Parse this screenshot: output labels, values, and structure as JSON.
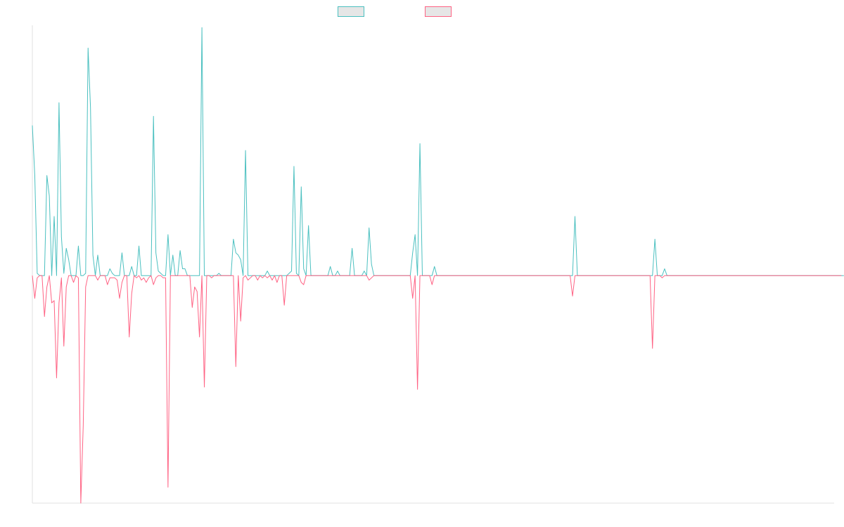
{
  "chart_data": {
    "type": "line",
    "title": "",
    "xlabel": "",
    "ylabel": "",
    "grid": false,
    "legend": {
      "placement": "top-center",
      "show_labels": false
    },
    "x_range": [
      0,
      331
    ],
    "ylim": [
      -1.0,
      1.1
    ],
    "series": [
      {
        "color": "#4bc0c0",
        "fill": "#e6e6e6",
        "values": [
          0.66,
          0.44,
          0.01,
          0.0,
          0.0,
          0.0,
          0.44,
          0.35,
          0.0,
          0.26,
          0.0,
          0.76,
          0.17,
          0.01,
          0.12,
          0.07,
          0.0,
          0.0,
          0.0,
          0.13,
          0.0,
          0.0,
          0.01,
          1.0,
          0.74,
          0.09,
          0.0,
          0.09,
          0.0,
          0.0,
          0.0,
          0.0,
          0.03,
          0.01,
          0.0,
          0.0,
          0.0,
          0.1,
          0.0,
          0.0,
          0.0,
          0.04,
          0.0,
          0.0,
          0.13,
          0.0,
          0.0,
          0.0,
          0.0,
          0.0,
          0.7,
          0.1,
          0.02,
          0.01,
          0.0,
          0.0,
          0.18,
          0.0,
          0.09,
          0.0,
          0.0,
          0.11,
          0.03,
          0.03,
          0.0,
          0.0,
          0.0,
          0.0,
          0.0,
          0.0,
          1.09,
          0.0,
          0.0,
          0.0,
          0.0,
          0.0,
          0.0,
          0.01,
          0.0,
          0.0,
          0.0,
          0.0,
          0.0,
          0.16,
          0.1,
          0.09,
          0.07,
          0.0,
          0.55,
          0.0,
          0.0,
          0.0,
          0.0,
          0.0,
          0.0,
          0.0,
          0.0,
          0.02,
          0.0,
          0.0,
          0.0,
          0.0,
          0.0,
          0.0,
          0.0,
          0.0,
          0.01,
          0.02,
          0.48,
          0.01,
          0.0,
          0.39,
          0.03,
          0.0,
          0.22,
          0.0,
          0.0,
          0.0,
          0.0,
          0.0,
          0.0,
          0.0,
          0.0,
          0.04,
          0.0,
          0.0,
          0.02,
          0.0,
          0.0,
          0.0,
          0.0,
          0.0,
          0.12,
          0.0,
          0.0,
          0.0,
          0.0,
          0.02,
          0.0,
          0.21,
          0.05,
          0.0,
          0.0,
          0.0,
          0.0,
          0.0,
          0.0,
          0.0,
          0.0,
          0.0,
          0.0,
          0.0,
          0.0,
          0.0,
          0.0,
          0.0,
          0.0,
          0.1,
          0.18,
          0.0,
          0.58,
          0.0,
          0.0,
          0.0,
          0.0,
          0.0,
          0.04,
          0.0,
          0.0,
          0.0,
          0.0,
          0.0,
          0.0,
          0.0,
          0.0,
          0.0,
          0.0,
          0.0,
          0.0,
          0.0,
          0.0,
          0.0,
          0.0,
          0.0,
          0.0,
          0.0,
          0.0,
          0.0,
          0.0,
          0.0,
          0.0,
          0.0,
          0.0,
          0.0,
          0.0,
          0.0,
          0.0,
          0.0,
          0.0,
          0.0,
          0.0,
          0.0,
          0.0,
          0.0,
          0.0,
          0.0,
          0.0,
          0.0,
          0.0,
          0.0,
          0.0,
          0.0,
          0.0,
          0.0,
          0.0,
          0.0,
          0.0,
          0.0,
          0.0,
          0.0,
          0.0,
          0.0,
          0.0,
          0.0,
          0.26,
          0.0,
          0.0,
          0.0,
          0.0,
          0.0,
          0.0,
          0.0,
          0.0,
          0.0,
          0.0,
          0.0,
          0.0,
          0.0,
          0.0,
          0.0,
          0.0,
          0.0,
          0.0,
          0.0,
          0.0,
          0.0,
          0.0,
          0.0,
          0.0,
          0.0,
          0.0,
          0.0,
          0.0,
          0.0,
          0.0,
          0.0,
          0.0,
          0.16,
          0.0,
          0.0,
          0.0,
          0.03,
          0.0,
          0.0,
          0.0,
          0.0,
          0.0,
          0.0,
          0.0,
          0.0,
          0.0,
          0.0,
          0.0,
          0.0,
          0.0,
          0.0,
          0.0,
          0.0,
          0.0,
          0.0,
          0.0,
          0.0,
          0.0,
          0.0,
          0.0,
          0.0,
          0.0,
          0.0,
          0.0,
          0.0,
          0.0,
          0.0,
          0.0,
          0.0,
          0.0,
          0.0,
          0.0,
          0.0,
          0.0,
          0.0,
          0.0,
          0.0,
          0.0,
          0.0,
          0.0,
          0.0,
          0.0,
          0.0,
          0.0,
          0.0,
          0.0,
          0.0,
          0.0,
          0.0,
          0.0,
          0.0,
          0.0,
          0.0,
          0.0,
          0.0,
          0.0,
          0.0,
          0.0,
          0.0,
          0.0,
          0.0,
          0.0,
          0.0,
          0.0,
          0.0,
          0.0,
          0.0,
          0.0,
          0.0,
          0.0,
          0.0
        ]
      },
      {
        "color": "#ff6384",
        "fill": "#e6e6e6",
        "values": [
          0.0,
          -0.1,
          -0.01,
          0.0,
          0.0,
          -0.18,
          -0.05,
          0.0,
          -0.12,
          -0.11,
          -0.45,
          -0.12,
          -0.01,
          -0.31,
          -0.05,
          0.0,
          0.0,
          -0.03,
          0.0,
          -0.01,
          -1.0,
          -0.66,
          -0.05,
          0.0,
          0.0,
          0.0,
          0.0,
          -0.02,
          0.0,
          0.0,
          0.0,
          -0.04,
          -0.01,
          -0.01,
          -0.01,
          -0.02,
          -0.1,
          -0.03,
          0.0,
          0.0,
          -0.27,
          -0.08,
          0.0,
          -0.01,
          0.0,
          -0.02,
          -0.01,
          -0.03,
          -0.01,
          0.0,
          -0.04,
          -0.01,
          0.0,
          0.0,
          -0.01,
          -0.01,
          -0.93,
          0.0,
          0.0,
          0.0,
          0.0,
          0.0,
          0.0,
          0.0,
          0.0,
          0.0,
          -0.14,
          -0.05,
          -0.07,
          -0.27,
          0.0,
          -0.49,
          0.0,
          0.0,
          -0.01,
          0.0,
          0.0,
          0.0,
          0.0,
          0.0,
          0.0,
          0.0,
          0.0,
          0.0,
          -0.4,
          0.0,
          -0.2,
          -0.01,
          0.0,
          -0.02,
          -0.01,
          0.0,
          0.0,
          -0.02,
          0.0,
          -0.01,
          0.0,
          -0.01,
          0.0,
          -0.02,
          0.0,
          -0.03,
          0.0,
          0.0,
          -0.13,
          0.0,
          0.0,
          0.0,
          0.0,
          0.0,
          0.0,
          -0.03,
          -0.04,
          0.0,
          0.0,
          0.0,
          0.0,
          0.0,
          0.0,
          0.0,
          0.0,
          0.0,
          0.0,
          0.0,
          0.0,
          0.0,
          0.0,
          0.0,
          0.0,
          0.0,
          0.0,
          0.0,
          0.0,
          0.0,
          0.0,
          0.0,
          0.0,
          0.0,
          0.0,
          -0.02,
          -0.01,
          0.0,
          0.0,
          0.0,
          0.0,
          0.0,
          0.0,
          0.0,
          0.0,
          0.0,
          0.0,
          0.0,
          0.0,
          0.0,
          0.0,
          0.0,
          0.0,
          -0.1,
          0.0,
          -0.5,
          0.0,
          0.0,
          0.0,
          0.0,
          0.0,
          -0.04,
          0.0,
          0.0,
          0.0,
          0.0,
          0.0,
          0.0,
          0.0,
          0.0,
          0.0,
          0.0,
          0.0,
          0.0,
          0.0,
          0.0,
          0.0,
          0.0,
          0.0,
          0.0,
          0.0,
          0.0,
          0.0,
          0.0,
          0.0,
          0.0,
          0.0,
          0.0,
          0.0,
          0.0,
          0.0,
          0.0,
          0.0,
          0.0,
          0.0,
          0.0,
          0.0,
          0.0,
          0.0,
          0.0,
          0.0,
          0.0,
          0.0,
          0.0,
          0.0,
          0.0,
          0.0,
          0.0,
          0.0,
          0.0,
          0.0,
          0.0,
          0.0,
          0.0,
          0.0,
          0.0,
          0.0,
          0.0,
          0.0,
          -0.09,
          0.0,
          0.0,
          0.0,
          0.0,
          0.0,
          0.0,
          0.0,
          0.0,
          0.0,
          0.0,
          0.0,
          0.0,
          0.0,
          0.0,
          0.0,
          0.0,
          0.0,
          0.0,
          0.0,
          0.0,
          0.0,
          0.0,
          0.0,
          0.0,
          0.0,
          0.0,
          0.0,
          0.0,
          0.0,
          0.0,
          0.0,
          0.0,
          -0.32,
          0.0,
          0.0,
          0.0,
          -0.01,
          0.0,
          0.0,
          0.0,
          0.0,
          0.0,
          0.0,
          0.0,
          0.0,
          0.0,
          0.0,
          0.0,
          0.0,
          0.0,
          0.0,
          0.0,
          0.0,
          0.0,
          0.0,
          0.0,
          0.0,
          0.0,
          0.0,
          0.0,
          0.0,
          0.0,
          0.0,
          0.0,
          0.0,
          0.0,
          0.0,
          0.0,
          0.0,
          0.0,
          0.0,
          0.0,
          0.0,
          0.0,
          0.0,
          0.0,
          0.0,
          0.0,
          0.0,
          0.0,
          0.0,
          0.0,
          0.0,
          0.0,
          0.0,
          0.0,
          0.0,
          0.0,
          0.0,
          0.0,
          0.0,
          0.0,
          0.0,
          0.0,
          0.0,
          0.0,
          0.0,
          0.0,
          0.0,
          0.0,
          0.0,
          0.0,
          0.0,
          0.0,
          0.0,
          0.0,
          0.0,
          0.0,
          0.0,
          0.0,
          0.0
        ]
      }
    ]
  }
}
